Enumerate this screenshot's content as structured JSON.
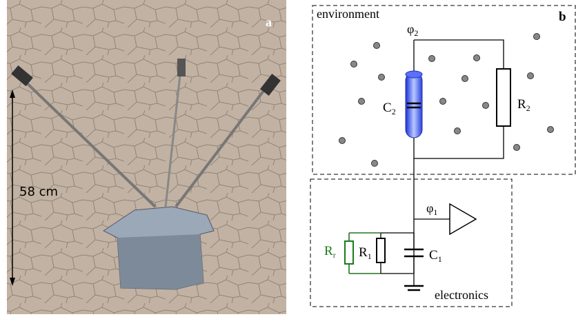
{
  "panel_a": {
    "label": "a",
    "scale_label": "58 cm"
  },
  "panel_b": {
    "label": "b",
    "environment_label": "environment",
    "electronics_label": "electronics",
    "phi2": {
      "main": "φ",
      "sub": "2"
    },
    "c2": {
      "main": "C",
      "sub": "2"
    },
    "r2": {
      "main": "R",
      "sub": "2"
    },
    "phi1": {
      "main": "φ",
      "sub": "1"
    },
    "r1": {
      "main": "R",
      "sub": "1"
    },
    "c1": {
      "main": "C",
      "sub": "1"
    },
    "rr": {
      "main": "R",
      "sub": "r"
    }
  }
}
